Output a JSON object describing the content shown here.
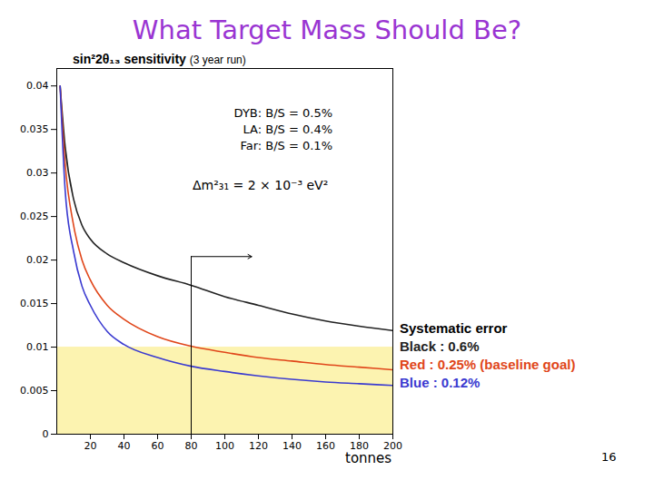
{
  "chart_data": {
    "type": "line",
    "title": "What Target Mass Should Be?",
    "ylabel": "sin²2θ₁₃ sensitivity",
    "subtitle": "(3 year run)",
    "xlabel": "tonnes",
    "annotations": [
      "DYB: B/S = 0.5%",
      "LA: B/S = 0.4%",
      "Far: B/S = 0.1%",
      "Δm²₃₁ = 2 × 10⁻³ eV²"
    ],
    "legend_title": "Systematic error",
    "slide_number": "16",
    "x": [
      2,
      5,
      10,
      15,
      20,
      30,
      40,
      60,
      80,
      100,
      120,
      140,
      160,
      180,
      200
    ],
    "series": [
      {
        "name": "Black : 0.6%",
        "color": "#222222",
        "values": [
          0.04,
          0.033,
          0.027,
          0.024,
          0.0224,
          0.0207,
          0.0197,
          0.0182,
          0.0171,
          0.0158,
          0.0148,
          0.0138,
          0.013,
          0.0124,
          0.0119
        ]
      },
      {
        "name": "Red : 0.25% (baseline goal)",
        "color": "#e0461a",
        "values": [
          0.04,
          0.031,
          0.024,
          0.02,
          0.0177,
          0.0148,
          0.0132,
          0.0112,
          0.0101,
          0.0094,
          0.0088,
          0.0084,
          0.008,
          0.0077,
          0.0074
        ]
      },
      {
        "name": "Blue : 0.12%",
        "color": "#3a3ad0",
        "values": [
          0.04,
          0.028,
          0.021,
          0.017,
          0.0148,
          0.0118,
          0.0103,
          0.0088,
          0.0078,
          0.0072,
          0.0067,
          0.0063,
          0.006,
          0.0058,
          0.0056
        ]
      }
    ],
    "xlim": [
      0,
      200
    ],
    "ylim": [
      0,
      0.042
    ],
    "xticks": [
      20,
      40,
      60,
      80,
      100,
      120,
      140,
      160,
      180,
      200
    ],
    "yticks": [
      0,
      0.005,
      0.01,
      0.015,
      0.02,
      0.025,
      0.03,
      0.035,
      0.04
    ],
    "shaded_band": {
      "y": [
        0,
        0.01
      ],
      "color": "#fcf3b0"
    },
    "reference_line": {
      "x": 80,
      "y_top": 0.0204,
      "arrow_to_x": 116
    },
    "grid": false
  }
}
